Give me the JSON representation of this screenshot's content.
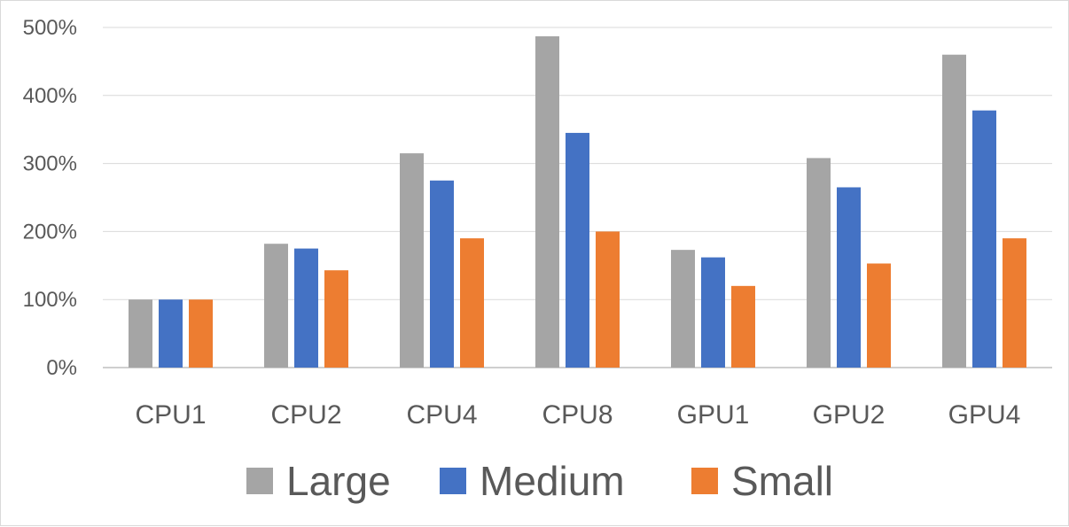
{
  "chart_data": {
    "type": "bar",
    "categories": [
      "CPU1",
      "CPU2",
      "CPU4",
      "CPU8",
      "GPU1",
      "GPU2",
      "GPU4"
    ],
    "series": [
      {
        "name": "Large",
        "color": "#a5a5a5",
        "values": [
          100,
          182,
          315,
          487,
          173,
          308,
          460
        ]
      },
      {
        "name": "Medium",
        "color": "#4472c4",
        "values": [
          100,
          175,
          275,
          345,
          162,
          265,
          378
        ]
      },
      {
        "name": "Small",
        "color": "#ed7d31",
        "values": [
          100,
          143,
          190,
          200,
          120,
          153,
          190
        ]
      }
    ],
    "yticks": [
      "0%",
      "100%",
      "200%",
      "300%",
      "400%",
      "500%"
    ],
    "ylim": [
      0,
      500
    ],
    "grid": true,
    "legend": "bottom",
    "title": "",
    "xlabel": "",
    "ylabel": ""
  }
}
